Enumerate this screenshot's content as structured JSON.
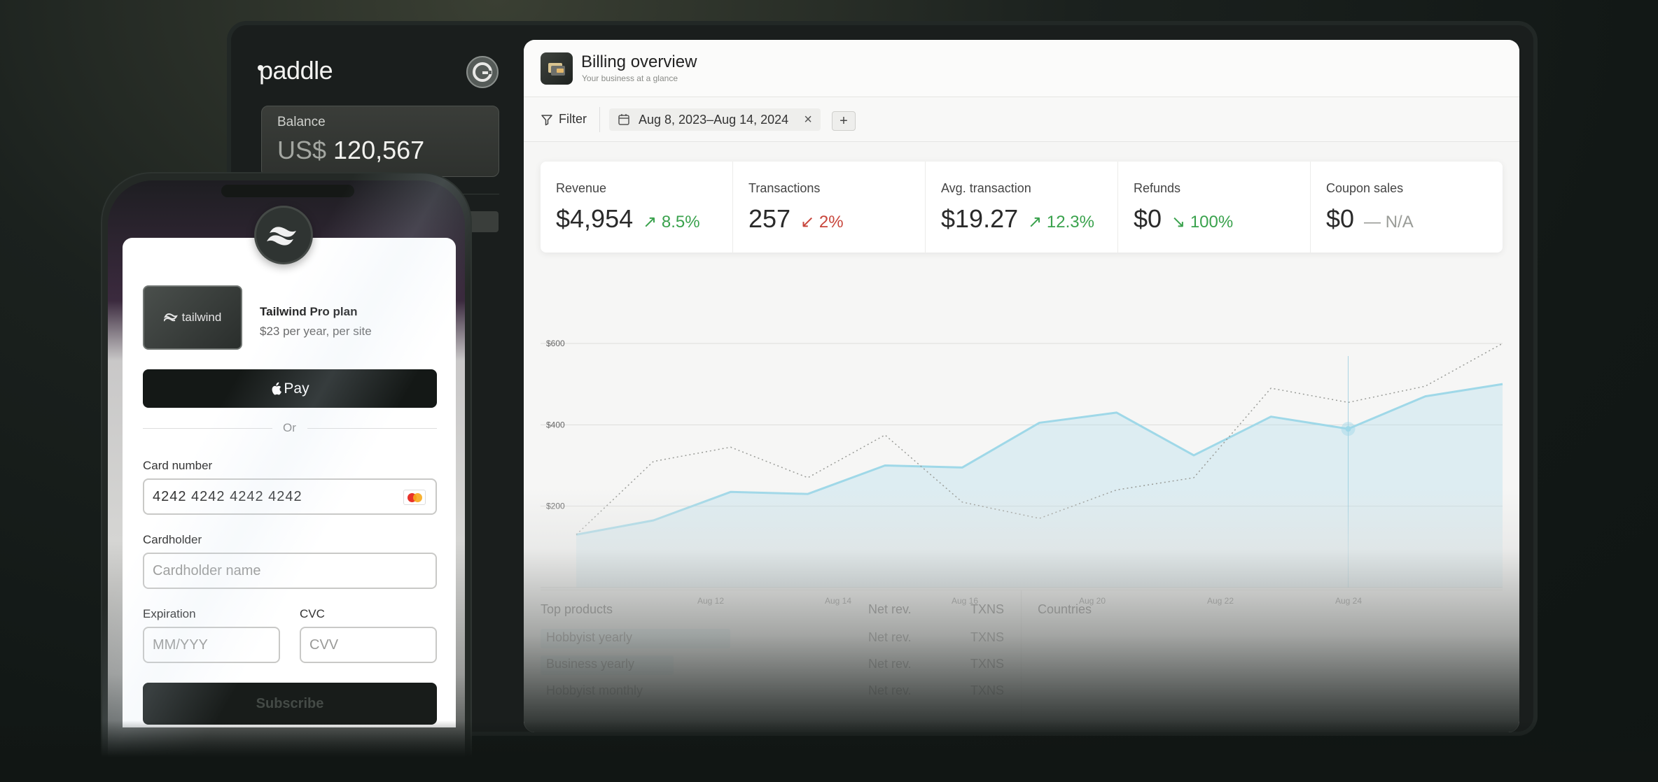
{
  "sidebar": {
    "logo": "paddle",
    "balance": {
      "label": "Balance",
      "currency": "US$",
      "amount": "120,567"
    }
  },
  "header": {
    "title": "Billing overview",
    "subtitle": "Your business at a glance"
  },
  "filterbar": {
    "filter_label": "Filter",
    "date_range": "Aug 8, 2023–Aug 14, 2024",
    "clear_symbol": "×",
    "add_symbol": "+"
  },
  "metrics": [
    {
      "label": "Revenue",
      "value": "$4,954",
      "change": "↗ 8.5%",
      "trend": "up"
    },
    {
      "label": "Transactions",
      "value": "257",
      "change": "↙ 2%",
      "trend": "down"
    },
    {
      "label": "Avg. transaction",
      "value": "$19.27",
      "change": "↗ 12.3%",
      "trend": "up"
    },
    {
      "label": "Refunds",
      "value": "$0",
      "change": "↘ 100%",
      "trend": "up"
    },
    {
      "label": "Coupon sales",
      "value": "$0",
      "change": "— N/A",
      "trend": "neutral"
    }
  ],
  "chart_data": {
    "type": "area",
    "y_ticks": [
      "$600",
      "$400",
      "$200"
    ],
    "ylim": [
      0,
      600
    ],
    "x_tick_labels": [
      "Aug 12",
      "Aug 14",
      "Aug 16",
      "Aug 20",
      "Aug 22",
      "Aug 24"
    ],
    "series": [
      {
        "style": "solid-area",
        "color": "#9fd8e8",
        "values": [
          130,
          165,
          235,
          230,
          300,
          295,
          405,
          430,
          325,
          420,
          390,
          470,
          500
        ]
      },
      {
        "style": "dotted",
        "color": "#9a9c98",
        "values": [
          130,
          310,
          345,
          270,
          375,
          210,
          170,
          240,
          270,
          490,
          455,
          495,
          600
        ]
      }
    ],
    "hover_index": 10
  },
  "products": {
    "title": "Top products",
    "col_net": "Net rev.",
    "col_txns": "TXNS",
    "rows": [
      {
        "name": "Hobbyist yearly",
        "net": "Net rev.",
        "txns": "TXNS",
        "share": 0.26
      },
      {
        "name": "Business yearly",
        "net": "Net rev.",
        "txns": "TXNS",
        "share": 0.18
      },
      {
        "name": "Hobbyist monthly",
        "net": "Net rev.",
        "txns": "TXNS",
        "share": 0
      }
    ]
  },
  "countries": {
    "title": "Countries"
  },
  "checkout": {
    "product_thumb_text": "tailwind",
    "plan_name": "Tailwind Pro plan",
    "plan_price": "$23 per year, per site",
    "apple_pay_label": "Pay",
    "or_text": "Or",
    "card_number_label": "Card number",
    "card_number_value": "4242 4242 4242 4242",
    "cardholder_label": "Cardholder",
    "cardholder_placeholder": "Cardholder name",
    "expiration_label": "Expiration",
    "expiration_placeholder": "MM/YYY",
    "cvc_label": "CVC",
    "cvc_placeholder": "CVV",
    "subscribe_label": "Subscribe"
  },
  "colors": {
    "accent": "#9fd8e8",
    "positive": "#3aa24d",
    "negative": "#c8463c"
  }
}
